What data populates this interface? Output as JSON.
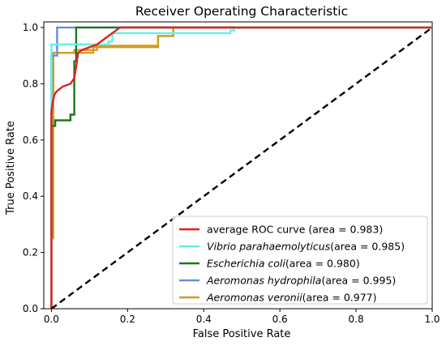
{
  "chart_data": {
    "type": "line",
    "title": "Receiver Operating Characteristic",
    "xlabel": "False Positive Rate",
    "ylabel": "True Positive Rate",
    "xlim": [
      -0.02,
      1.0
    ],
    "ylim": [
      0.0,
      1.02
    ],
    "xticks": [
      "0.0",
      "0.2",
      "0.4",
      "0.6",
      "0.8",
      "1.0"
    ],
    "yticks": [
      "0.0",
      "0.2",
      "0.4",
      "0.6",
      "0.8",
      "1.0"
    ],
    "legend_position": "lower-right",
    "grid": false,
    "series": [
      {
        "name": "average ROC curve",
        "area_text": "(area = 0.983)",
        "color": "#e3201b",
        "x": [
          0.0,
          0.0,
          0.004,
          0.008,
          0.012,
          0.02,
          0.03,
          0.05,
          0.06,
          0.065,
          0.07,
          0.08,
          0.1,
          0.12,
          0.13,
          0.14,
          0.15,
          0.16,
          0.17,
          0.18,
          1.0
        ],
        "y": [
          0.0,
          0.7,
          0.74,
          0.76,
          0.77,
          0.78,
          0.79,
          0.8,
          0.82,
          0.86,
          0.91,
          0.92,
          0.93,
          0.94,
          0.95,
          0.96,
          0.97,
          0.98,
          0.99,
          1.0,
          1.0
        ]
      },
      {
        "name": "Vibrio parahaemolyticus",
        "area_text": "(area = 0.985)",
        "color": "#5ef1f1",
        "x": [
          0.0,
          0.0,
          0.0,
          0.15,
          0.15,
          0.16,
          0.16,
          0.28,
          0.28,
          0.47,
          0.47,
          0.48,
          0.48,
          1.0
        ],
        "y": [
          0.0,
          0.94,
          0.94,
          0.94,
          0.95,
          0.95,
          0.98,
          0.98,
          0.98,
          0.98,
          0.99,
          0.99,
          1.0,
          1.0
        ]
      },
      {
        "name": "Escherichia coli",
        "area_text": "(area = 0.980)",
        "color": "#1a7a1a",
        "x": [
          0.0,
          0.0,
          0.01,
          0.01,
          0.05,
          0.05,
          0.06,
          0.06,
          0.065,
          0.065,
          1.0
        ],
        "y": [
          0.0,
          0.65,
          0.65,
          0.67,
          0.67,
          0.69,
          0.69,
          0.88,
          0.88,
          1.0,
          1.0
        ]
      },
      {
        "name": "Aeromonas hydrophila",
        "area_text": "(area = 0.995)",
        "color": "#6a8ae0",
        "x": [
          0.0,
          0.0,
          0.015,
          0.015,
          0.175,
          1.0
        ],
        "y": [
          0.0,
          0.9,
          0.9,
          1.0,
          1.0,
          1.0
        ]
      },
      {
        "name": "Aeromonas veronii",
        "area_text": "(area = 0.977)",
        "color": "#c8a21c",
        "x": [
          0.0,
          0.0,
          0.005,
          0.005,
          0.06,
          0.06,
          0.11,
          0.11,
          0.2,
          0.2,
          0.28,
          0.28,
          0.32,
          0.32,
          1.0
        ],
        "y": [
          0.0,
          0.25,
          0.25,
          0.91,
          0.91,
          0.91,
          0.91,
          0.93,
          0.93,
          0.93,
          0.93,
          0.97,
          0.97,
          1.0,
          1.0
        ]
      },
      {
        "name": "",
        "color": "#f28c28",
        "x": [
          0.0,
          0.0,
          0.005,
          0.005,
          0.06,
          0.06,
          0.12,
          0.12,
          0.2,
          0.2,
          0.28,
          0.28,
          0.32,
          0.32,
          1.0
        ],
        "y": [
          0.0,
          0.65,
          0.65,
          0.91,
          0.91,
          0.92,
          0.92,
          0.935,
          0.935,
          0.935,
          0.935,
          0.97,
          0.97,
          1.0,
          1.0
        ]
      }
    ],
    "chance_line": {
      "x": [
        0.0,
        1.0
      ],
      "y": [
        0.0,
        1.0
      ],
      "color": "#000000",
      "style": "dashed"
    }
  }
}
